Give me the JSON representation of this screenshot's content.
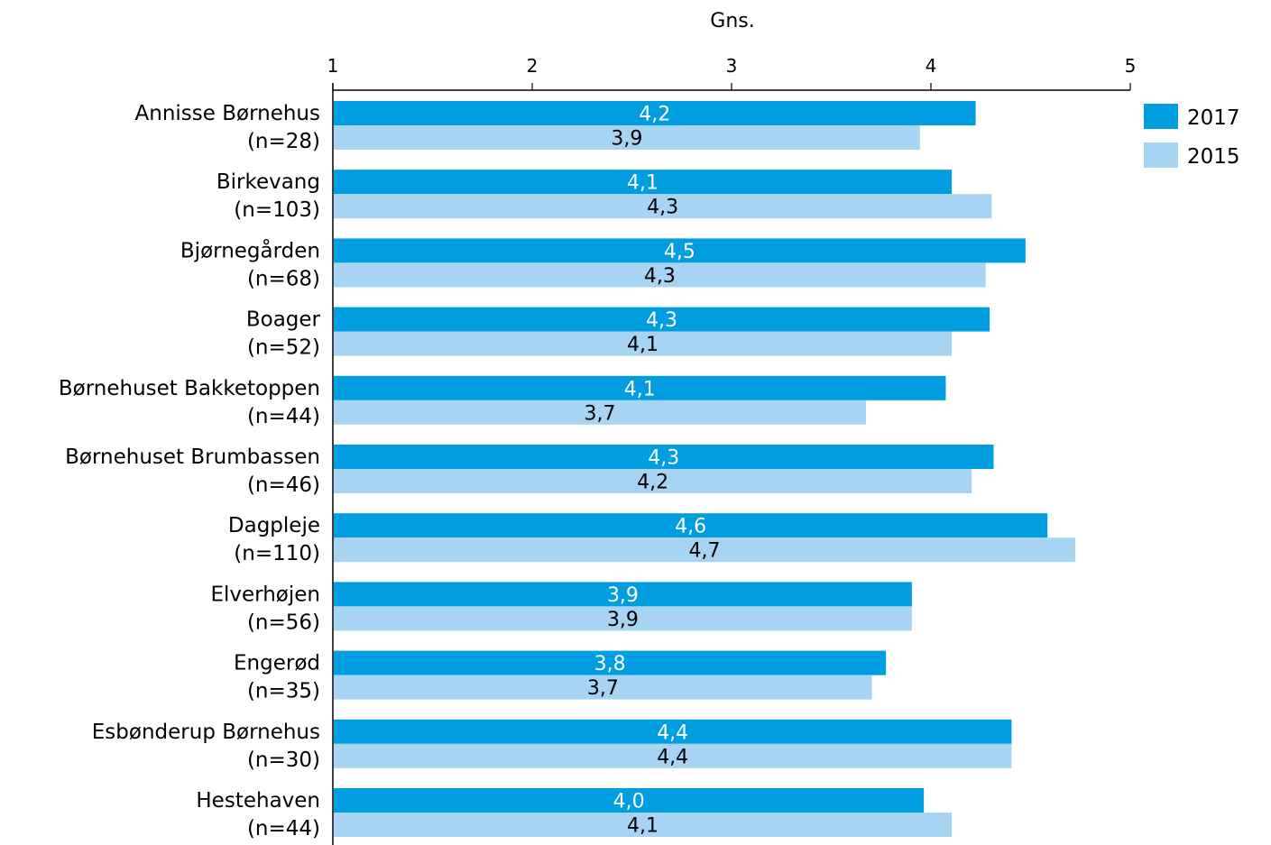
{
  "chart_data": {
    "type": "bar",
    "orientation": "horizontal",
    "title": "",
    "xlabel": "Gns.",
    "ylabel": "",
    "xlim": [
      1,
      5
    ],
    "xticks": [
      "1",
      "2",
      "3",
      "4",
      "5"
    ],
    "grid": false,
    "legend_position": "top-right",
    "categories": [
      {
        "name": "Annisse Børnehus",
        "n": "(n=28)"
      },
      {
        "name": "Birkevang",
        "n": "(n=103)"
      },
      {
        "name": "Bjørnegården",
        "n": "(n=68)"
      },
      {
        "name": "Boager",
        "n": "(n=52)"
      },
      {
        "name": "Børnehuset Bakketoppen",
        "n": "(n=44)"
      },
      {
        "name": "Børnehuset Brumbassen",
        "n": "(n=46)"
      },
      {
        "name": "Dagpleje",
        "n": "(n=110)"
      },
      {
        "name": "Elverhøjen",
        "n": "(n=56)"
      },
      {
        "name": "Engerød",
        "n": "(n=35)"
      },
      {
        "name": "Esbønderup Børnehus",
        "n": "(n=30)"
      },
      {
        "name": "Hestehaven",
        "n": "(n=44)"
      }
    ],
    "series": [
      {
        "name": "2017",
        "color": "#009ee0",
        "label_color": "#ffffff",
        "values": [
          4.22,
          4.1,
          4.47,
          4.29,
          4.07,
          4.31,
          4.58,
          3.9,
          3.77,
          4.4,
          3.96
        ],
        "labels": [
          "4,2",
          "4,1",
          "4,5",
          "4,3",
          "4,1",
          "4,3",
          "4,6",
          "3,9",
          "3,8",
          "4,4",
          "4,0"
        ]
      },
      {
        "name": "2015",
        "color": "#a8d4f4",
        "label_color": "#000000",
        "values": [
          3.94,
          4.3,
          4.27,
          4.1,
          3.67,
          4.2,
          4.72,
          3.9,
          3.7,
          4.4,
          4.1
        ],
        "labels": [
          "3,9",
          "4,3",
          "4,3",
          "4,1",
          "3,7",
          "4,2",
          "4,7",
          "3,9",
          "3,7",
          "4,4",
          "4,1"
        ]
      }
    ]
  }
}
